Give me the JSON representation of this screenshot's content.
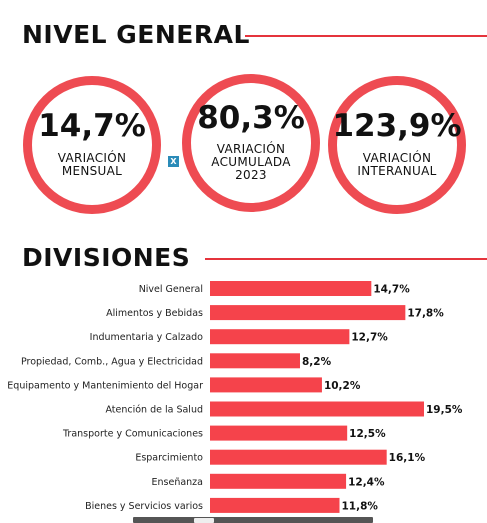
{
  "nivel": {
    "title": "NIVEL GENERAL",
    "cards": [
      {
        "value": "14,7%",
        "label": "VARIACIÓN\nMENSUAL"
      },
      {
        "value": "80,3%",
        "label": "VARIACIÓN\nACUMULADA\n2023"
      },
      {
        "value": "123,9%",
        "label": "VARIACIÓN\nINTERANUAL"
      }
    ],
    "badge_icon": "spreadsheet-icon",
    "badge_glyph": "X"
  },
  "divisiones": {
    "title": "DIVISIONES"
  },
  "colors": {
    "accent": "#ee4b52",
    "bar": "#f5434b",
    "rule": "#e5343c"
  },
  "chart_data": {
    "type": "bar",
    "orientation": "horizontal",
    "categories": [
      "Nivel General",
      "Alimentos y Bebidas",
      "Indumentaria y Calzado",
      "Propiedad, Comb., Agua y Electricidad",
      "Equipamento y Mantenimiento del Hogar",
      "Atención de la Salud",
      "Transporte y Comunicaciones",
      "Esparcimiento",
      "Enseñanza",
      "Bienes y Servicios varios"
    ],
    "values": [
      14.7,
      17.8,
      12.7,
      8.2,
      10.2,
      19.5,
      12.5,
      16.1,
      12.4,
      11.8
    ],
    "value_labels": [
      "14,7%",
      "17,8%",
      "12,7%",
      "8,2%",
      "10,2%",
      "19,5%",
      "12,5%",
      "16,1%",
      "12,4%",
      "11,8%"
    ],
    "xlim": [
      0,
      19.5
    ],
    "grid": false,
    "legend": "none"
  }
}
